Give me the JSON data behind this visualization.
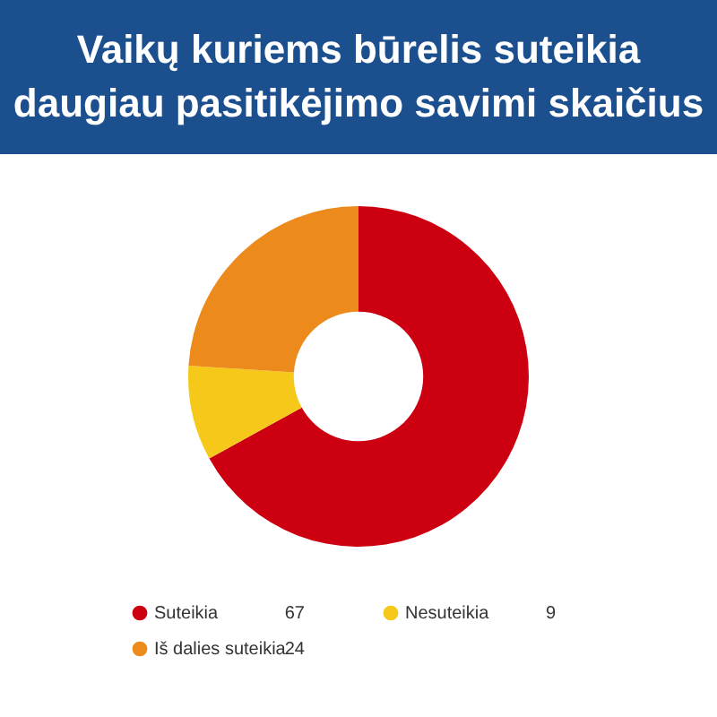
{
  "chart_data": {
    "type": "donut",
    "title": "Vaikų kuriems būrelis suteikia daugiau pasitikėjimo savimi skaičius",
    "categories": [
      "Suteikia",
      "Nesuteikia",
      "Iš dalies suteikia"
    ],
    "values": [
      67,
      9,
      24
    ],
    "colors": [
      "#cc0011",
      "#f6c81a",
      "#ec8a1c"
    ],
    "data_labels": true,
    "legend": "bottom"
  }
}
